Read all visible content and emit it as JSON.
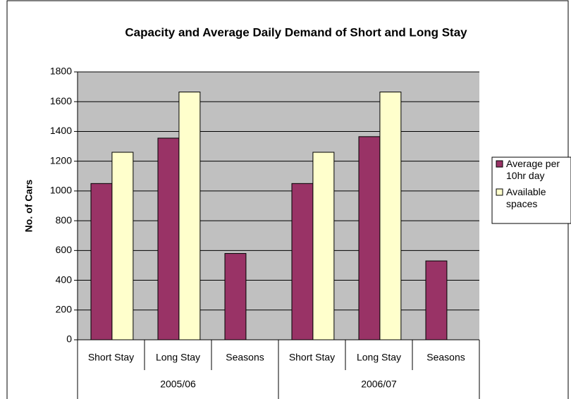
{
  "chart_data": {
    "type": "bar",
    "title": "Capacity and Average Daily Demand of Short and Long Stay",
    "y_label": "No. of Cars",
    "categories": [
      "Short Stay",
      "Long Stay",
      "Seasons",
      "Short Stay",
      "Long Stay",
      "Seasons"
    ],
    "groups": [
      "2005/06",
      "2006/07"
    ],
    "series": [
      {
        "name": "Average per 10hr day",
        "color": "#993366",
        "values": [
          1050,
          1355,
          580,
          1050,
          1365,
          530
        ]
      },
      {
        "name": "Available spaces",
        "color": "#ffffcc",
        "values": [
          1260,
          1665,
          null,
          1260,
          1665,
          null
        ]
      }
    ],
    "ylim": [
      0,
      1800
    ],
    "yticks": [
      0,
      200,
      400,
      600,
      800,
      1000,
      1200,
      1400,
      1600,
      1800
    ],
    "grid": true,
    "legend": "right"
  }
}
